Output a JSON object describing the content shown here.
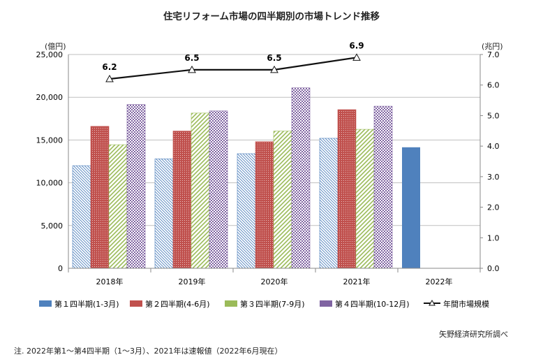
{
  "chart_data": {
    "type": "bar",
    "title": "住宅リフォーム市場の四半期別の市場トレンド推移",
    "categories": [
      "2018年",
      "2019年",
      "2020年",
      "2021年",
      "2022年"
    ],
    "y_left": {
      "label": "(億円)",
      "ylim": [
        0,
        25000
      ],
      "ticks": [
        "0",
        "5,000",
        "10,000",
        "15,000",
        "20,000",
        "25,000"
      ]
    },
    "y_right": {
      "label": "(兆円)",
      "ylim": [
        0,
        7
      ],
      "ticks": [
        "0.0",
        "1.0",
        "2.0",
        "3.0",
        "4.0",
        "5.0",
        "6.0",
        "7.0"
      ]
    },
    "series": [
      {
        "name": "第１四半期(1-3月)",
        "values": [
          12000,
          12800,
          13400,
          15200,
          14150
        ],
        "color": "#4f81bd",
        "solid": [
          false,
          false,
          false,
          false,
          true
        ]
      },
      {
        "name": "第２四半期(4-6月)",
        "values": [
          16600,
          16050,
          14800,
          18550,
          null
        ],
        "color": "#c0504d"
      },
      {
        "name": "第３四半期(7-9月)",
        "values": [
          14450,
          18150,
          16050,
          16250,
          null
        ],
        "color": "#9bbb59"
      },
      {
        "name": "第４四半期(10-12月)",
        "values": [
          19150,
          18400,
          21100,
          18950,
          null
        ],
        "color": "#8064a2"
      }
    ],
    "line": {
      "name": "年間市場規模",
      "values": [
        6.2,
        6.5,
        6.5,
        6.9
      ],
      "labels": [
        "6.2",
        "6.5",
        "6.5",
        "6.9"
      ]
    },
    "grid": true,
    "legend": "bottom"
  },
  "unit_left": "(億円)",
  "unit_right": "(兆円)",
  "source": "矢野経済研究所調べ",
  "note": "注. 2022年第1～第4四半期（1～3月）、2021年は速報値（2022年6月現在）"
}
